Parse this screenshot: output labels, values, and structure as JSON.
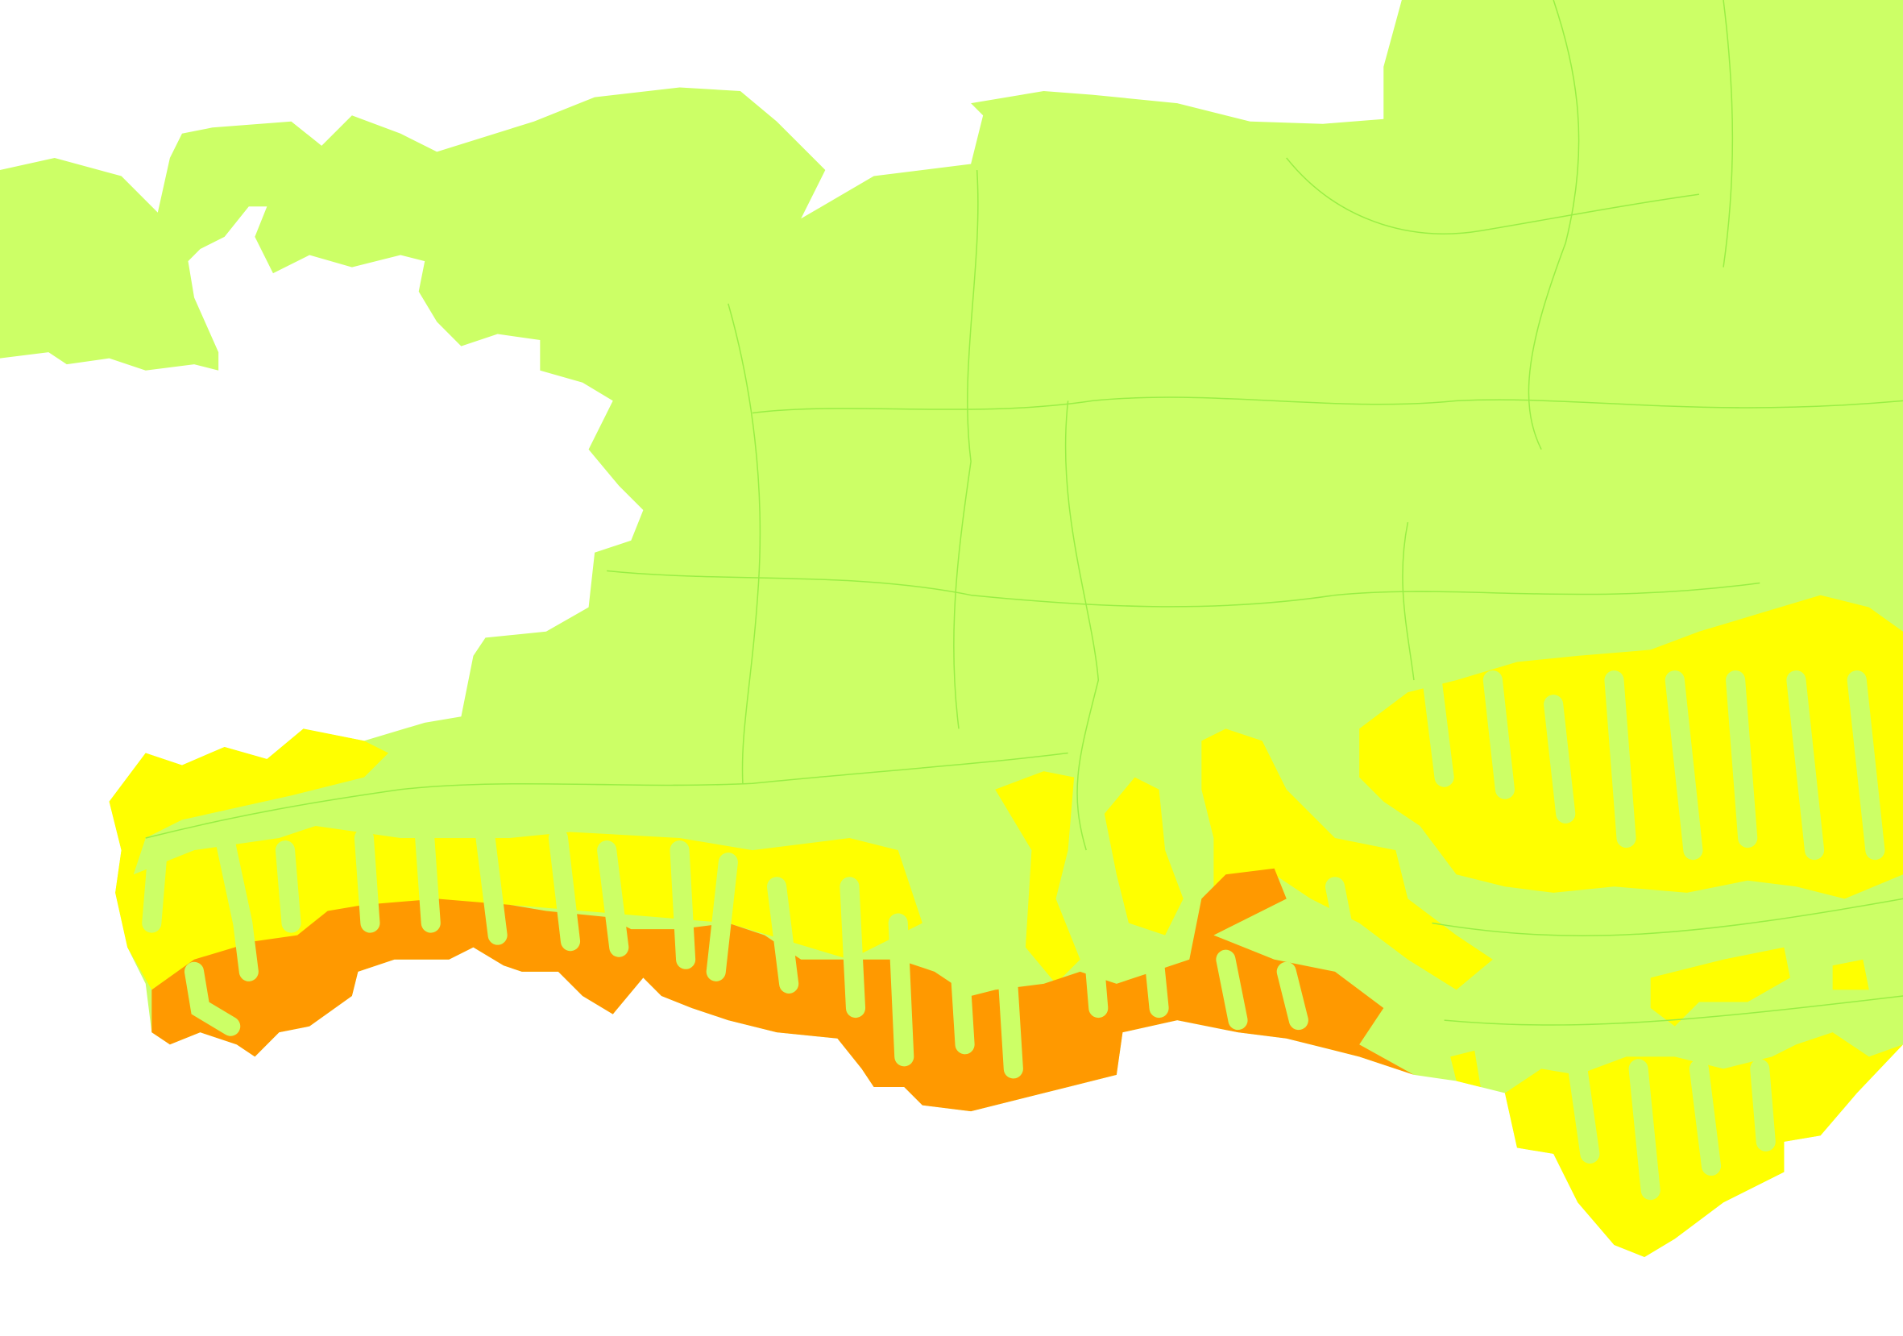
{
  "map": {
    "background": "#ffffff",
    "colors": {
      "low": "#ccff66",
      "medium": "#ffff00",
      "high": "#ff9900",
      "boundary": "#99ee44"
    }
  }
}
